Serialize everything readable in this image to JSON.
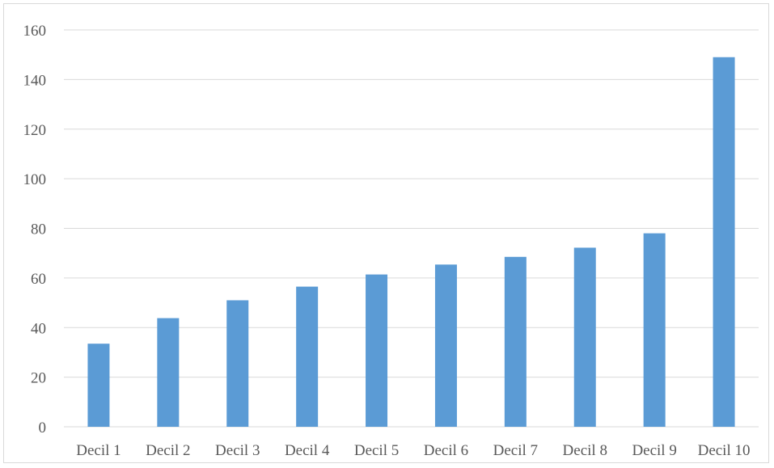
{
  "chart_data": {
    "type": "bar",
    "title": "",
    "xlabel": "",
    "ylabel": "",
    "categories": [
      "Decil 1",
      "Decil 2",
      "Decil 3",
      "Decil 4",
      "Decil 5",
      "Decil 6",
      "Decil 7",
      "Decil 8",
      "Decil 9",
      "Decil 10"
    ],
    "values": [
      33.5,
      43.8,
      51,
      56.5,
      61.4,
      65.4,
      68.5,
      72.2,
      78,
      149
    ],
    "ylim": [
      0,
      160
    ],
    "yticks": [
      0,
      20,
      40,
      60,
      80,
      100,
      120,
      140,
      160
    ],
    "grid": true,
    "legend": "none",
    "bar_color": "#5b9bd5",
    "grid_color": "#d9d9d9"
  }
}
